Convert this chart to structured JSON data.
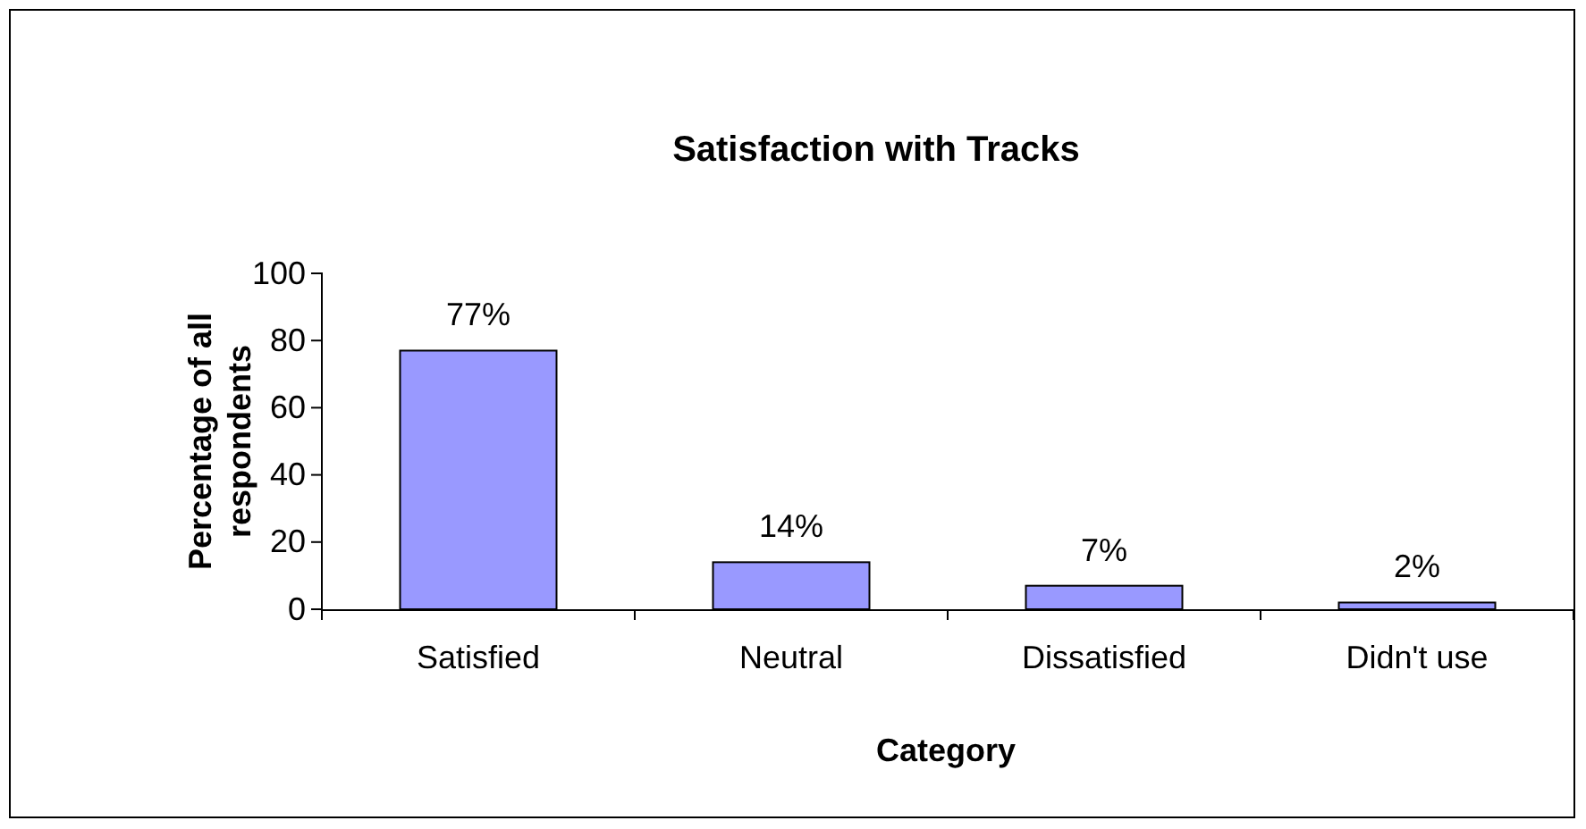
{
  "chart_data": {
    "type": "bar",
    "title": "Satisfaction with Tracks",
    "xlabel": "Category",
    "ylabel": "Percentage of all respondents",
    "categories": [
      "Satisfied",
      "Neutral",
      "Dissatisfied",
      "Didn't use"
    ],
    "values": [
      77,
      14,
      7,
      2
    ],
    "color": "#9999ff",
    "value_labels": [
      "77%",
      "14%",
      "7%",
      "2%"
    ],
    "ylim": [
      0,
      100
    ],
    "yticks": [
      0,
      20,
      40,
      60,
      80,
      100
    ],
    "grid": false
  }
}
